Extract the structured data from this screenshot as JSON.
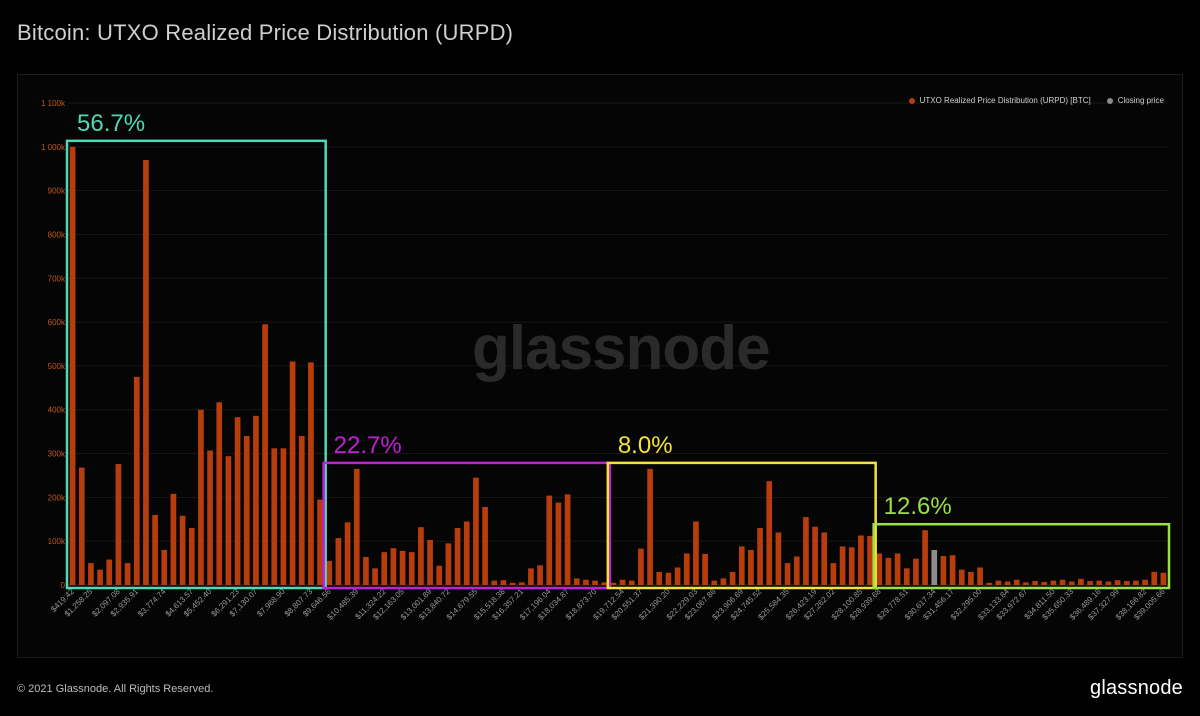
{
  "page": {
    "title": "Bitcoin: UTXO Realized Price Distribution (URPD)",
    "copyright": "© 2021 Glassnode. All Rights Reserved.",
    "brand": "glassnode",
    "watermark": "glassnode"
  },
  "colors": {
    "bar": "#b83d0c",
    "closing": "#8c8c8c",
    "axis_text": "#c0581d",
    "tick_text": "#9a9a9a",
    "grid": "#161616"
  },
  "legend": [
    {
      "label": "UTXO Realized Price Distribution (URPD) [BTC]",
      "color": "#b83d0c"
    },
    {
      "label": "Closing price",
      "color": "#8c8c8c"
    }
  ],
  "groups": [
    {
      "label": "56.7%",
      "color": "#4fd8b5",
      "from": 0,
      "to": 27
    },
    {
      "label": "22.7%",
      "color": "#c21ed6",
      "from": 28,
      "to": 58
    },
    {
      "label": "8.0%",
      "color": "#f2e23a",
      "from": 59,
      "to": 87
    },
    {
      "label": "12.6%",
      "color": "#9be042",
      "from": 88,
      "to": 119
    }
  ],
  "chart_data": {
    "type": "bar",
    "title": "Bitcoin: UTXO Realized Price Distribution (URPD)",
    "ylabel": "",
    "xlabel": "",
    "ylim": [
      0,
      1100000
    ],
    "yticks": [
      {
        "value": 0,
        "label": "0"
      },
      {
        "value": 100000,
        "label": "100k"
      },
      {
        "value": 200000,
        "label": "200k"
      },
      {
        "value": 300000,
        "label": "300k"
      },
      {
        "value": 400000,
        "label": "400k"
      },
      {
        "value": 500000,
        "label": "500k"
      },
      {
        "value": 600000,
        "label": "600k"
      },
      {
        "value": 700000,
        "label": "700k"
      },
      {
        "value": 800000,
        "label": "800k"
      },
      {
        "value": 900000,
        "label": "900k"
      },
      {
        "value": 1000000,
        "label": "1 000k"
      },
      {
        "value": 1100000,
        "label": "1 100k"
      }
    ],
    "xtick_labels": [
      {
        "index": 0,
        "label": "$419.42"
      },
      {
        "index": 2,
        "label": "$1,258.25"
      },
      {
        "index": 5,
        "label": "$2,097.08"
      },
      {
        "index": 7,
        "label": "$2,935.91"
      },
      {
        "index": 10,
        "label": "$3,774.74"
      },
      {
        "index": 13,
        "label": "$4,613.57"
      },
      {
        "index": 15,
        "label": "$5,452.40"
      },
      {
        "index": 18,
        "label": "$6,291.23"
      },
      {
        "index": 20,
        "label": "$7,130.07"
      },
      {
        "index": 23,
        "label": "$7,968.90"
      },
      {
        "index": 26,
        "label": "$8,807.73"
      },
      {
        "index": 28,
        "label": "$9,646.56"
      },
      {
        "index": 31,
        "label": "$10,485.39"
      },
      {
        "index": 34,
        "label": "$11,324.22"
      },
      {
        "index": 36,
        "label": "$12,163.05"
      },
      {
        "index": 39,
        "label": "$13,001.89"
      },
      {
        "index": 41,
        "label": "$13,840.72"
      },
      {
        "index": 44,
        "label": "$14,679.55"
      },
      {
        "index": 47,
        "label": "$15,518.38"
      },
      {
        "index": 49,
        "label": "$16,357.21"
      },
      {
        "index": 52,
        "label": "$17,196.04"
      },
      {
        "index": 54,
        "label": "$18,034.87"
      },
      {
        "index": 57,
        "label": "$18,873.70"
      },
      {
        "index": 60,
        "label": "$19,712.54"
      },
      {
        "index": 62,
        "label": "$20,551.37"
      },
      {
        "index": 65,
        "label": "$21,390.20"
      },
      {
        "index": 68,
        "label": "$22,229.03"
      },
      {
        "index": 70,
        "label": "$23,067.86"
      },
      {
        "index": 73,
        "label": "$23,906.69"
      },
      {
        "index": 75,
        "label": "$24,745.52"
      },
      {
        "index": 78,
        "label": "$25,584.35"
      },
      {
        "index": 81,
        "label": "$26,423.19"
      },
      {
        "index": 83,
        "label": "$27,262.02"
      },
      {
        "index": 86,
        "label": "$28,100.85"
      },
      {
        "index": 88,
        "label": "$28,939.68"
      },
      {
        "index": 91,
        "label": "$29,778.51"
      },
      {
        "index": 94,
        "label": "$30,617.34"
      },
      {
        "index": 96,
        "label": "$31,456.17"
      },
      {
        "index": 99,
        "label": "$32,295.00"
      },
      {
        "index": 102,
        "label": "$33,133.84"
      },
      {
        "index": 104,
        "label": "$33,972.67"
      },
      {
        "index": 107,
        "label": "$34,811.50"
      },
      {
        "index": 109,
        "label": "$35,650.33"
      },
      {
        "index": 112,
        "label": "$36,489.16"
      },
      {
        "index": 114,
        "label": "$37,327.99"
      },
      {
        "index": 117,
        "label": "$38,166.82"
      },
      {
        "index": 119,
        "label": "$39,005.66"
      }
    ],
    "closing_price_index": 94,
    "values": [
      1000000,
      268000,
      50000,
      35000,
      58000,
      276000,
      50000,
      475000,
      970000,
      160000,
      80000,
      208000,
      158000,
      130000,
      400000,
      307000,
      417000,
      294000,
      383000,
      340000,
      386000,
      595000,
      312000,
      312000,
      510000,
      340000,
      508000,
      195000,
      55000,
      107000,
      143000,
      265000,
      64000,
      38000,
      75000,
      84000,
      78000,
      75000,
      132000,
      103000,
      44000,
      95000,
      130000,
      145000,
      245000,
      178000,
      10000,
      11000,
      5000,
      6000,
      38000,
      45000,
      204000,
      188000,
      207000,
      15000,
      12000,
      10000,
      6000,
      5000,
      12000,
      10000,
      83000,
      265000,
      30000,
      28000,
      40000,
      72000,
      145000,
      71000,
      10000,
      15000,
      30000,
      88000,
      80000,
      130000,
      237000,
      120000,
      50000,
      65000,
      155000,
      133000,
      120000,
      50000,
      88000,
      86000,
      113000,
      112000,
      72000,
      62000,
      72000,
      38000,
      60000,
      125000,
      80000,
      66000,
      68000,
      35000,
      30000,
      40000,
      5000,
      10000,
      8000,
      12000,
      6000,
      9000,
      7000,
      10000,
      12000,
      8000,
      14000,
      9000,
      10000,
      8000,
      11000,
      9000,
      10000,
      12000,
      30000,
      28000
    ]
  }
}
